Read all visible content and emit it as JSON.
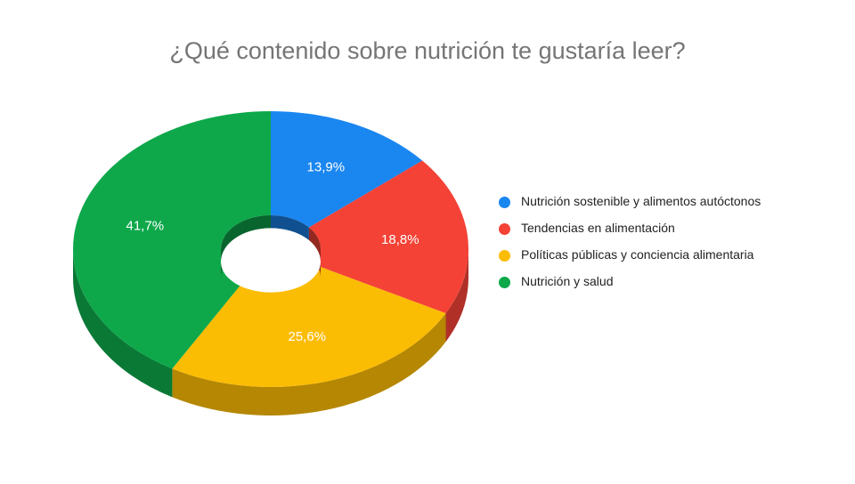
{
  "chart_data": {
    "type": "pie",
    "variant": "3d-donut",
    "title": "¿Qué contenido sobre nutrición te gustaría leer?",
    "legend_position": "right",
    "slices": [
      {
        "label": "Nutrición sostenible y alimentos autóctonos",
        "value": 13.9,
        "display": "13,9%",
        "color": "#1a86f0"
      },
      {
        "label": "Tendencias en alimentación",
        "value": 18.8,
        "display": "18,8%",
        "color": "#f44236"
      },
      {
        "label": "Políticas públicas y conciencia alimentaria",
        "value": 25.6,
        "display": "25,6%",
        "color": "#fbbc04"
      },
      {
        "label": "Nutrición y salud",
        "value": 41.7,
        "display": "41,7%",
        "color": "#0ea84b"
      }
    ]
  }
}
